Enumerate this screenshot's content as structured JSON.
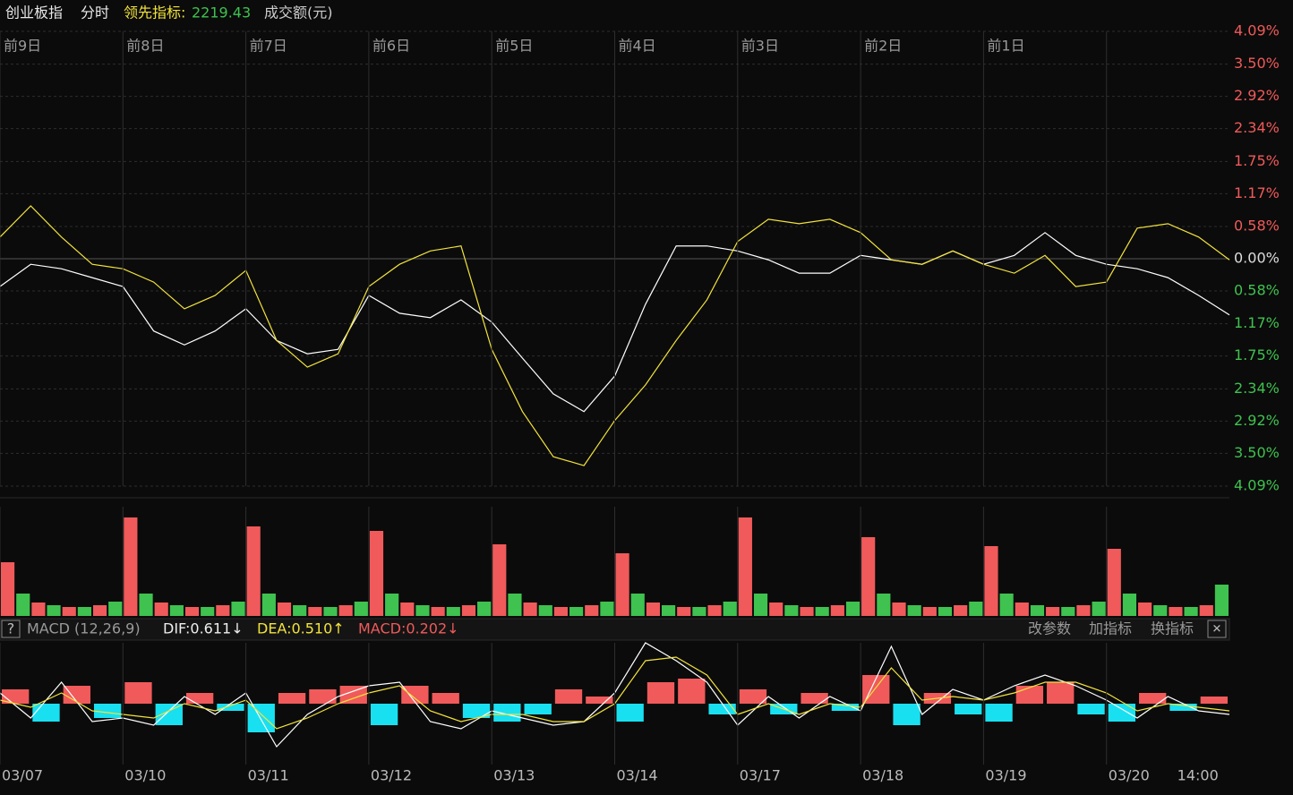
{
  "header": {
    "name": "创业板指",
    "mode": "分时",
    "indicator_label": "领先指标:",
    "indicator_value": 2219.43,
    "turnover": "成交额(元)"
  },
  "toolbar": {
    "help": "?",
    "buttons": [
      "改参数",
      "加指标",
      "换指标"
    ],
    "close": "✕"
  },
  "chart_data": [
    {
      "type": "line",
      "xlim": [
        0,
        10
      ],
      "ylim": [
        -4.09,
        4.09
      ],
      "yticks": [
        {
          "value": 4.09,
          "label": "4.09%"
        },
        {
          "value": 3.5,
          "label": "3.50%"
        },
        {
          "value": 2.92,
          "label": "2.92%"
        },
        {
          "value": 2.34,
          "label": "2.34%"
        },
        {
          "value": 1.75,
          "label": "1.75%"
        },
        {
          "value": 1.17,
          "label": "1.17%"
        },
        {
          "value": 0.58,
          "label": "0.58%"
        },
        {
          "value": 0,
          "label": "0.00%"
        },
        {
          "value": -0.58,
          "label": "0.58%"
        },
        {
          "value": -1.17,
          "label": "1.17%"
        },
        {
          "value": -1.75,
          "label": "1.75%"
        },
        {
          "value": -2.34,
          "label": "2.34%"
        },
        {
          "value": -2.92,
          "label": "2.92%"
        },
        {
          "value": -3.5,
          "label": "3.50%"
        },
        {
          "value": -4.09,
          "label": "4.09%"
        }
      ],
      "tick_colors": {
        "positive": "#f05a5a",
        "zero": "#dddddd",
        "negative": "#3fc24f"
      },
      "x2ticks": [
        {
          "value": 0,
          "label": "前9日"
        },
        {
          "value": 1,
          "label": "前8日"
        },
        {
          "value": 2,
          "label": "前7日"
        },
        {
          "value": 3,
          "label": "前6日"
        },
        {
          "value": 4,
          "label": "前5日"
        },
        {
          "value": 5,
          "label": "前4日"
        },
        {
          "value": 6,
          "label": "前3日"
        },
        {
          "value": 7,
          "label": "前2日"
        },
        {
          "value": 8,
          "label": "前1日"
        }
      ],
      "x": [
        0,
        0.25,
        0.5,
        0.75,
        1,
        1.25,
        1.5,
        1.75,
        2,
        2.25,
        2.5,
        2.75,
        3,
        3.25,
        3.5,
        3.75,
        4,
        4.25,
        4.5,
        4.75,
        5,
        5.25,
        5.5,
        5.75,
        6,
        6.25,
        6.5,
        6.75,
        7,
        7.25,
        7.5,
        7.75,
        8,
        8.25,
        8.5,
        8.75,
        9,
        9.25,
        9.5,
        9.75,
        10
      ],
      "series": [
        {
          "name": "创业板指",
          "color": "#ffffff",
          "values": [
            -0.5,
            -0.1,
            -0.18,
            -0.34,
            -0.5,
            -1.3,
            -1.55,
            -1.3,
            -0.9,
            -1.47,
            -1.71,
            -1.63,
            -0.66,
            -0.98,
            -1.06,
            -0.74,
            -1.14,
            -1.79,
            -2.43,
            -2.75,
            -2.11,
            -0.82,
            0.23,
            0.23,
            0.14,
            -0.02,
            -0.26,
            -0.26,
            0.06,
            -0.02,
            -0.1,
            0.14,
            -0.1,
            0.06,
            0.47,
            0.06,
            -0.1,
            -0.18,
            -0.34,
            -0.66,
            -1.01
          ]
        },
        {
          "name": "领先指标",
          "color": "#f2e33a",
          "values": [
            0.39,
            0.95,
            0.39,
            -0.1,
            -0.18,
            -0.42,
            -0.9,
            -0.66,
            -0.21,
            -1.47,
            -1.95,
            -1.71,
            -0.5,
            -0.1,
            0.14,
            0.23,
            -1.63,
            -2.75,
            -3.56,
            -3.72,
            -2.91,
            -2.27,
            -1.47,
            -0.74,
            0.31,
            0.71,
            0.63,
            0.71,
            0.47,
            -0.02,
            -0.1,
            0.14,
            -0.1,
            -0.26,
            0.06,
            -0.5,
            -0.42,
            0.55,
            0.63,
            0.39,
            -0.02
          ]
        }
      ]
    },
    {
      "type": "bar",
      "xlim": [
        0,
        10
      ],
      "ylim": [
        0,
        122
      ],
      "colors": [
        "#f05a5a",
        "#3fc24f"
      ],
      "values": [
        60,
        25,
        15,
        12,
        10,
        10,
        12,
        16,
        110,
        25,
        15,
        12,
        10,
        10,
        12,
        16,
        100,
        25,
        15,
        12,
        10,
        10,
        12,
        16,
        95,
        25,
        15,
        12,
        10,
        10,
        12,
        16,
        80,
        25,
        15,
        12,
        10,
        10,
        12,
        16,
        70,
        25,
        15,
        12,
        10,
        10,
        12,
        16,
        110,
        25,
        15,
        12,
        10,
        10,
        12,
        16,
        88,
        25,
        15,
        12,
        10,
        10,
        12,
        16,
        78,
        25,
        15,
        12,
        10,
        10,
        12,
        16,
        75,
        25,
        15,
        12,
        10,
        10,
        12,
        35
      ]
    },
    {
      "type": "macd",
      "title": "MACD (12,26,9)",
      "dif_label": "DIF:0.611↓",
      "dea_label": "DEA:0.510↑",
      "macd_label": "MACD:0.202↓",
      "xlim": [
        0,
        10
      ],
      "ylim": [
        -1.7,
        1.7
      ],
      "colors": {
        "up": "#f05a5a",
        "down": "#19e0f0"
      },
      "xticks": [
        {
          "value": 0,
          "label": "03/07"
        },
        {
          "value": 1,
          "label": "03/10"
        },
        {
          "value": 2,
          "label": "03/11"
        },
        {
          "value": 3,
          "label": "03/12"
        },
        {
          "value": 4,
          "label": "03/13"
        },
        {
          "value": 5,
          "label": "03/14"
        },
        {
          "value": 6,
          "label": "03/17"
        },
        {
          "value": 7,
          "label": "03/18"
        },
        {
          "value": 8,
          "label": "03/19"
        },
        {
          "value": 9,
          "label": "03/20"
        },
        {
          "value": 9.75,
          "label": "14:00"
        }
      ],
      "histogram": [
        0.4,
        -0.5,
        0.5,
        -0.4,
        0.6,
        -0.6,
        0.3,
        -0.2,
        -0.8,
        0.3,
        0.4,
        0.5,
        -0.6,
        0.5,
        0.3,
        -0.4,
        -0.5,
        -0.3,
        0.4,
        0.2,
        -0.5,
        0.6,
        0.7,
        -0.3,
        0.4,
        -0.3,
        0.3,
        -0.2,
        0.8,
        -0.6,
        0.3,
        -0.3,
        -0.5,
        0.5,
        0.6,
        -0.3,
        -0.5,
        0.3,
        -0.2,
        0.2
      ],
      "x": [
        0,
        0.25,
        0.5,
        0.75,
        1,
        1.25,
        1.5,
        1.75,
        2,
        2.25,
        2.5,
        2.75,
        3,
        3.25,
        3.5,
        3.75,
        4,
        4.25,
        4.5,
        4.75,
        5,
        5.25,
        5.5,
        5.75,
        6,
        6.25,
        6.5,
        6.75,
        7,
        7.25,
        7.5,
        7.75,
        8,
        8.25,
        8.5,
        8.75,
        9,
        9.25,
        9.5,
        9.75,
        10
      ],
      "series": [
        {
          "name": "DIF",
          "color": "#ffffff",
          "values": [
            0.3,
            -0.4,
            0.6,
            -0.5,
            -0.4,
            -0.6,
            0.2,
            -0.3,
            0.3,
            -1.2,
            -0.3,
            0.2,
            0.5,
            0.6,
            -0.5,
            -0.7,
            -0.2,
            -0.4,
            -0.6,
            -0.5,
            0.3,
            1.7,
            1.2,
            0.6,
            -0.6,
            0.2,
            -0.4,
            0.2,
            -0.2,
            1.6,
            -0.3,
            0.4,
            0.1,
            0.5,
            0.8,
            0.5,
            0.1,
            -0.4,
            0.2,
            -0.2,
            -0.3
          ]
        },
        {
          "name": "DEA",
          "color": "#f2e33a",
          "values": [
            0.1,
            -0.1,
            0.3,
            -0.2,
            -0.3,
            -0.4,
            0,
            -0.2,
            0.1,
            -0.7,
            -0.4,
            0,
            0.3,
            0.5,
            -0.2,
            -0.5,
            -0.3,
            -0.3,
            -0.5,
            -0.5,
            0,
            1.2,
            1.3,
            0.8,
            -0.3,
            0,
            -0.3,
            0,
            -0.1,
            1,
            0.1,
            0.2,
            0.1,
            0.3,
            0.6,
            0.6,
            0.3,
            -0.2,
            0,
            -0.1,
            -0.2
          ]
        }
      ]
    }
  ]
}
